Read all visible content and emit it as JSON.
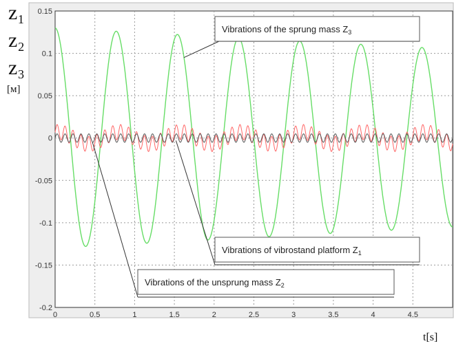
{
  "chart_data": {
    "type": "line",
    "title": "",
    "ylabel_symbols": [
      "z₁",
      "z₂",
      "z₃"
    ],
    "ylabel_unit": "[м]",
    "xlabel": "t[s]",
    "xlim": [
      0,
      5
    ],
    "ylim": [
      -0.2,
      0.15
    ],
    "grid": true,
    "x_ticks": [
      "0",
      "0.5",
      "1",
      "1.5",
      "2",
      "2.5",
      "3",
      "3.5",
      "4",
      "4.5"
    ],
    "y_ticks": [
      "0.15",
      "0.1",
      "0.05",
      "0",
      "-0.05",
      "-0.1",
      "-0.15",
      "-0.2"
    ],
    "series": [
      {
        "role": "sprung_mass_z3",
        "color": "#66dd66",
        "x": [
          0,
          0.18,
          0.38,
          0.58,
          0.76,
          0.96,
          1.14,
          1.32,
          1.5,
          1.7,
          1.9,
          2.1,
          2.28,
          2.48,
          2.66,
          2.86,
          3.05,
          3.25,
          3.44,
          3.62,
          3.82,
          4.02,
          4.2,
          4.4,
          4.58,
          4.78,
          5.0
        ],
        "y": [
          0.13,
          0.04,
          -0.123,
          -0.03,
          0.126,
          0.02,
          -0.118,
          -0.03,
          0.122,
          0.01,
          -0.115,
          -0.02,
          0.115,
          0.01,
          -0.105,
          -0.01,
          0.113,
          0.01,
          -0.108,
          -0.01,
          0.111,
          0.01,
          -0.104,
          -0.01,
          0.108,
          0.01,
          -0.1
        ]
      },
      {
        "role": "unsprung_mass_z2",
        "color": "#ff6666",
        "x": [
          0,
          0.2,
          0.4,
          0.6,
          0.8,
          1.0,
          1.2,
          1.4,
          1.6,
          1.8,
          2.0,
          2.2,
          2.4,
          2.6,
          2.8,
          3.0,
          3.2,
          3.4,
          3.6,
          3.8,
          4.0,
          4.2,
          4.4,
          4.6,
          4.8,
          5.0
        ],
        "y": [
          0.015,
          0.008,
          -0.01,
          -0.005,
          0.012,
          0.003,
          -0.01,
          0.01,
          0.018,
          0.0,
          -0.01,
          0.005,
          0.01,
          0.0,
          -0.01,
          0.01,
          0.015,
          0.0,
          -0.01,
          0.01,
          0.012,
          0.0,
          -0.01,
          0.015,
          0.01,
          -0.005
        ]
      },
      {
        "role": "platform_z1",
        "color": "#555555",
        "x": [
          0,
          5
        ],
        "amplitude": 0.005,
        "frequency_hz": 10
      }
    ],
    "annotations": [
      {
        "text_main": "Vibrations of the sprung mass Z",
        "subscript": "3",
        "points_to": [
          1.62,
          0.095
        ]
      },
      {
        "text_main": "Vibrations of vibrostand platform Z",
        "subscript": "1",
        "points_to": [
          1.52,
          -0.003
        ]
      },
      {
        "text_main": "Vibrations of the unsprung mass Z",
        "subscript": "2",
        "points_to": [
          0.47,
          -0.005
        ]
      }
    ]
  }
}
